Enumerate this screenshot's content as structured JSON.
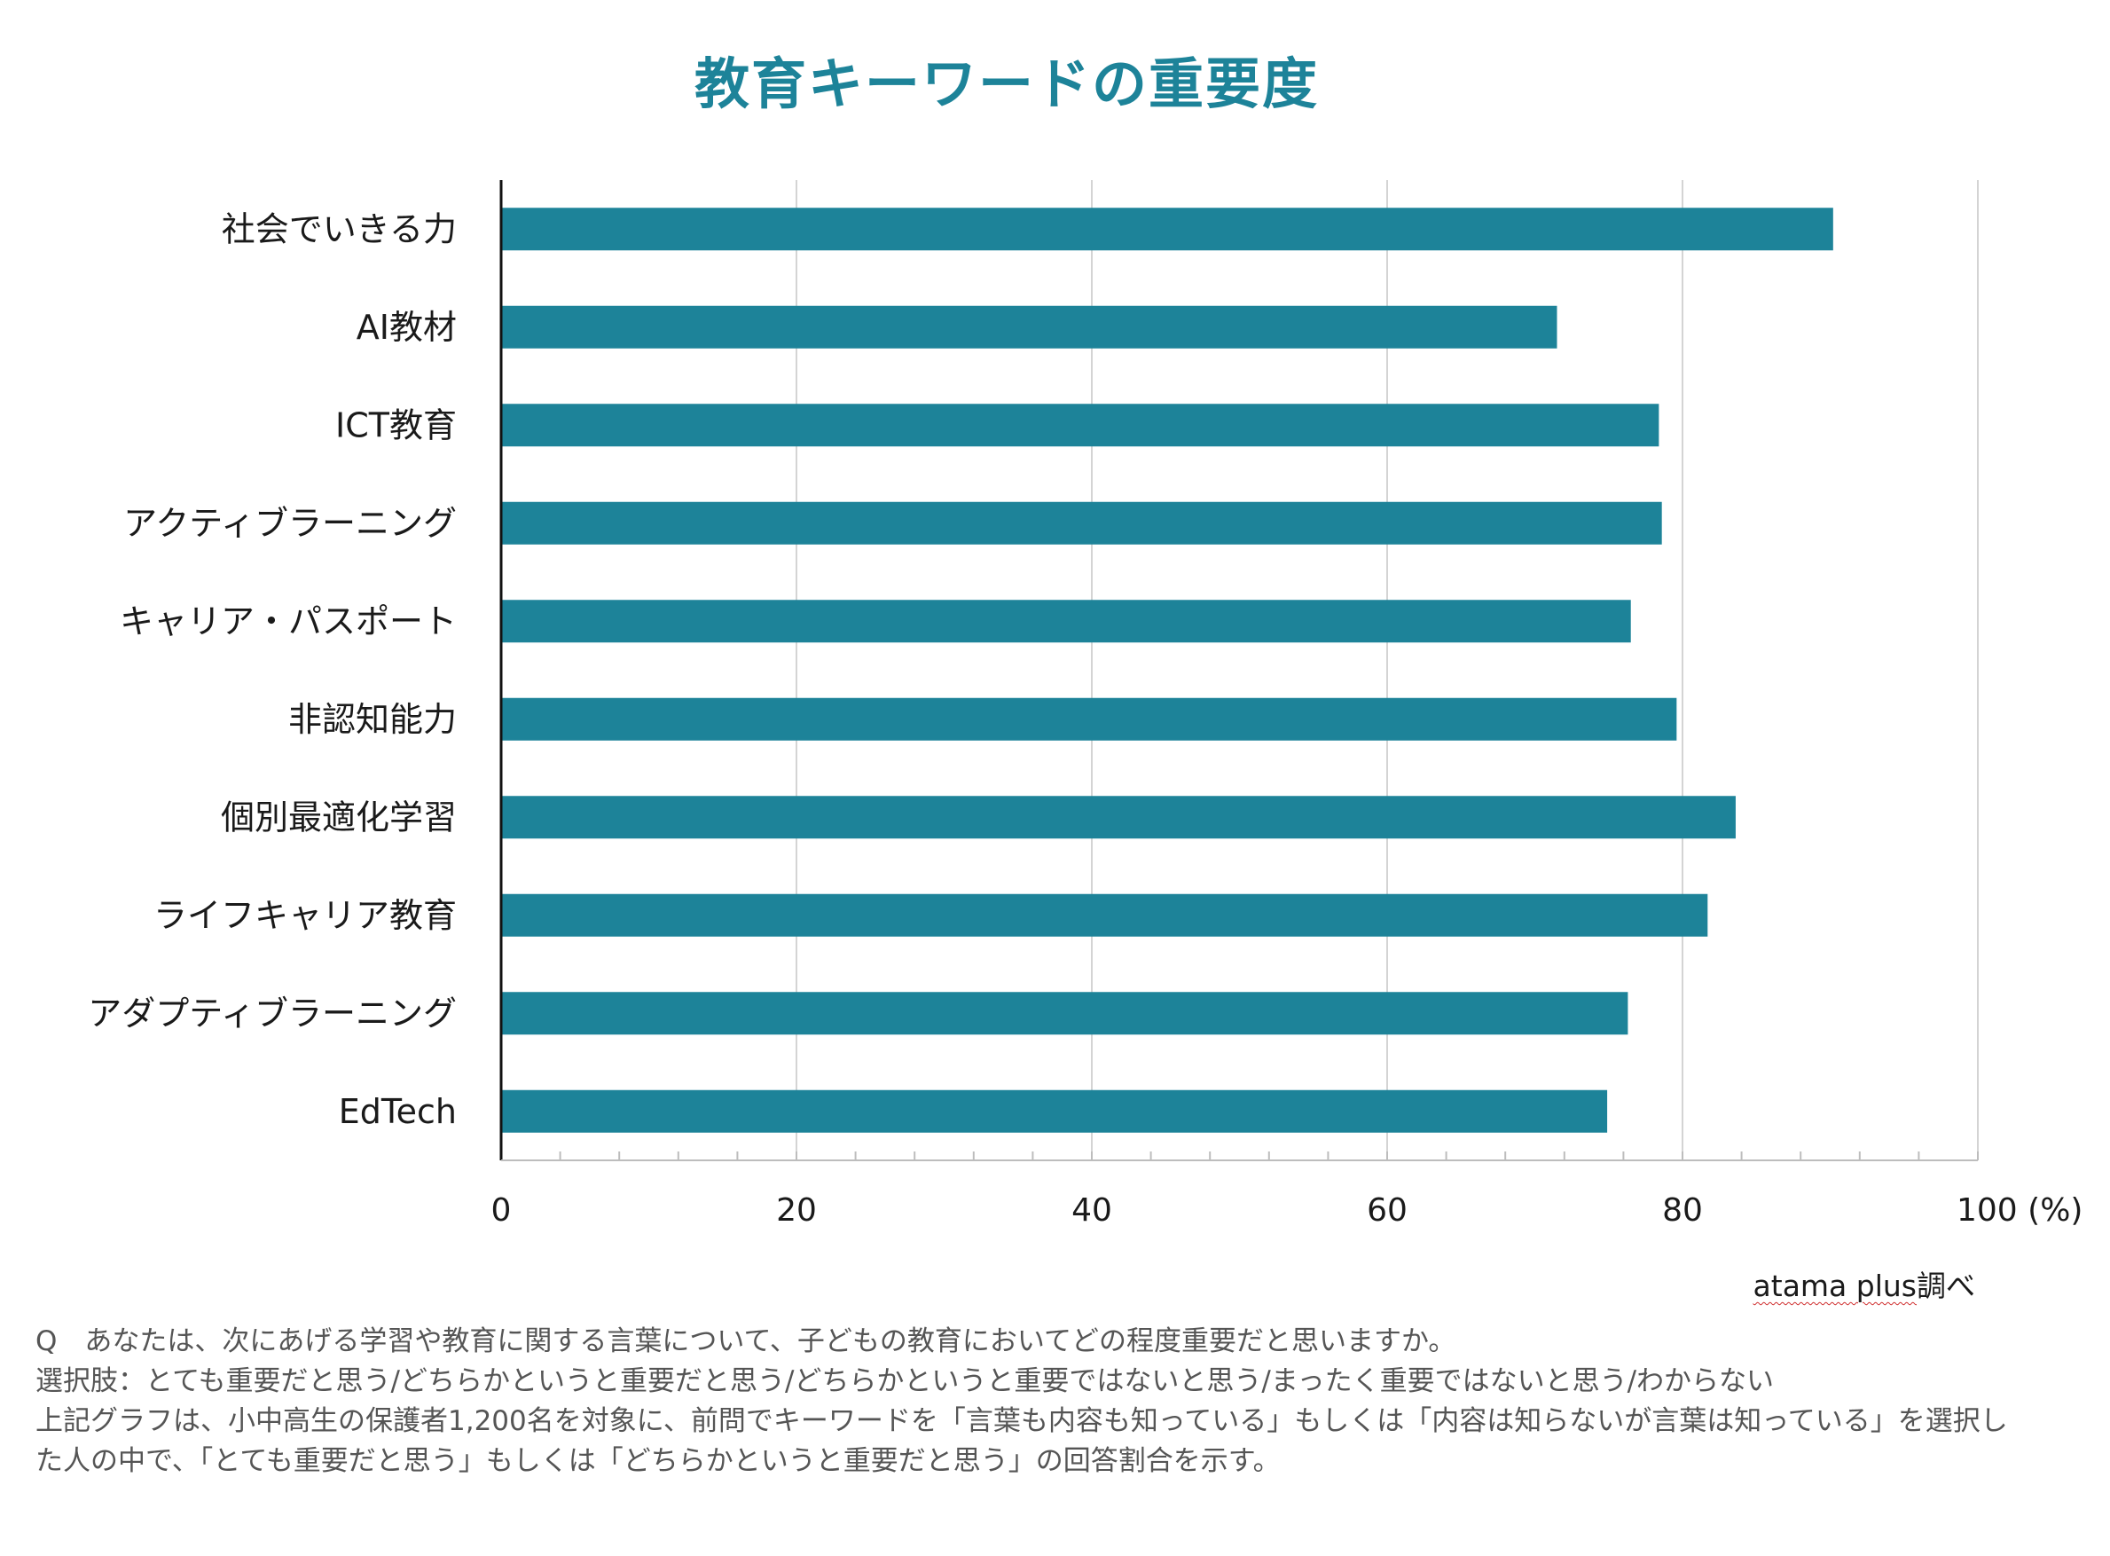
{
  "chart_data": {
    "type": "bar",
    "orientation": "horizontal",
    "title": "教育キーワードの重要度",
    "categories": [
      "社会でいきる力",
      "AI教材",
      "ICT教育",
      "アクティブラーニング",
      "キャリア・パスポート",
      "非認知能力",
      "個別最適化学習",
      "ライフキャリア教育",
      "アダプティブラーニング",
      "EdTech"
    ],
    "values": [
      90.2,
      71.5,
      78.4,
      78.6,
      76.5,
      79.6,
      83.6,
      81.7,
      76.3,
      74.9
    ],
    "xlim": [
      0,
      100
    ],
    "xticks": [
      "0",
      "20",
      "40",
      "60",
      "80",
      "100 (%)"
    ],
    "xtick_values": [
      0,
      20,
      40,
      60,
      80,
      100
    ],
    "minor_tick_step": 4,
    "xlabel": "",
    "ylabel": "",
    "grid": "vertical",
    "bar_color": "#1d8399"
  },
  "source_label": "atama plus調べ",
  "source_prefix": "atama plus",
  "source_suffix": "調べ",
  "notes": [
    "Q　あなたは、次にあげる学習や教育に関する言葉について、子どもの教育においてどの程度重要だと思いますか。",
    "選択肢：とても重要だと思う/どちらかというと重要だと思う/どちらかというと重要ではないと思う/まったく重要ではないと思う/わからない",
    "上記グラフは、小中高生の保護者1,200名を対象に、前問でキーワードを「言葉も内容も知っている」もしくは「内容は知らないが言葉は知っている」を選択した人の中で、「とても重要だと思う」もしくは「どちらかというと重要だと思う」の回答割合を示す。"
  ]
}
